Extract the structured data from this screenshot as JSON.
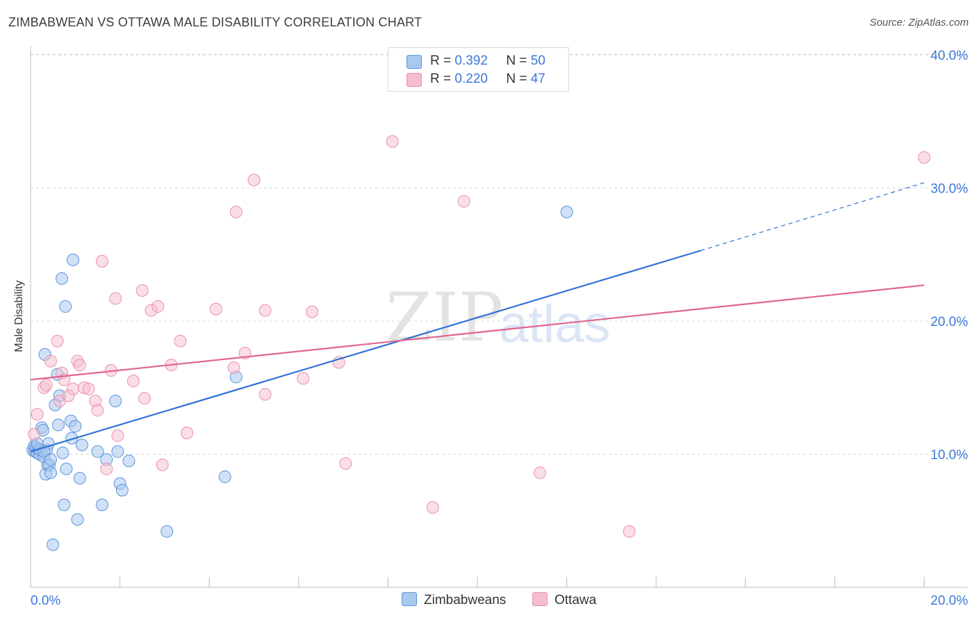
{
  "header": {
    "title": "ZIMBABWEAN VS OTTAWA MALE DISABILITY CORRELATION CHART",
    "source": "Source: ZipAtlas.com"
  },
  "watermark": {
    "zip": "ZIP",
    "atlas": "atlas"
  },
  "legend": {
    "series": [
      {
        "r_label": "R =",
        "r_value": "0.392",
        "n_label": "N =",
        "n_value": "50"
      },
      {
        "r_label": "R =",
        "r_value": "0.220",
        "n_label": "N =",
        "n_value": "47"
      }
    ]
  },
  "bottom_legend": {
    "series_a": "Zimbabweans",
    "series_b": "Ottawa"
  },
  "colors": {
    "blue_fill": "#a9c8f0",
    "blue_stroke": "#5b93d9",
    "blue_line": "#2e72d2",
    "pink_fill": "#f6bdd0",
    "pink_stroke": "#ea8fae",
    "pink_line": "#e0648f",
    "tick_label": "#3b78d8",
    "grid": "#d8d8d8"
  },
  "chart_data": {
    "type": "scatter",
    "title": "ZIMBABWEAN VS OTTAWA MALE DISABILITY CORRELATION CHART",
    "xlabel": "",
    "ylabel": "Male Disability",
    "xlim": [
      0,
      20
    ],
    "ylim": [
      0,
      40
    ],
    "x_tick_labels": [
      "0.0%",
      "20.0%"
    ],
    "y_ticks": [
      10,
      20,
      30,
      40
    ],
    "y_tick_labels": [
      "10.0%",
      "20.0%",
      "30.0%",
      "40.0%"
    ],
    "series": [
      {
        "name": "Zimbabweans",
        "r": 0.392,
        "n": 50,
        "trend": {
          "x0": 0,
          "y0": 10.2,
          "x1": 15,
          "y1": 25.3,
          "dashed_to_x": 20,
          "dashed_to_y": 30.4
        },
        "points": [
          [
            0.05,
            10.3
          ],
          [
            0.08,
            10.6
          ],
          [
            0.1,
            10.2
          ],
          [
            0.12,
            10.5
          ],
          [
            0.15,
            10.1
          ],
          [
            0.18,
            10.4
          ],
          [
            0.2,
            10.0
          ],
          [
            0.22,
            10.3
          ],
          [
            0.25,
            12.0
          ],
          [
            0.28,
            11.8
          ],
          [
            0.3,
            9.8
          ],
          [
            0.32,
            17.5
          ],
          [
            0.34,
            8.5
          ],
          [
            0.36,
            10.3
          ],
          [
            0.38,
            9.2
          ],
          [
            0.4,
            10.8
          ],
          [
            0.42,
            9.2
          ],
          [
            0.45,
            8.6
          ],
          [
            0.5,
            3.2
          ],
          [
            0.55,
            13.7
          ],
          [
            0.6,
            16.0
          ],
          [
            0.62,
            12.2
          ],
          [
            0.65,
            14.4
          ],
          [
            0.7,
            23.2
          ],
          [
            0.72,
            10.1
          ],
          [
            0.75,
            6.2
          ],
          [
            0.78,
            21.1
          ],
          [
            0.8,
            8.9
          ],
          [
            0.9,
            12.5
          ],
          [
            0.92,
            11.2
          ],
          [
            0.95,
            24.6
          ],
          [
            1.0,
            12.1
          ],
          [
            1.05,
            5.1
          ],
          [
            1.1,
            8.2
          ],
          [
            1.15,
            10.7
          ],
          [
            1.5,
            10.2
          ],
          [
            1.6,
            6.2
          ],
          [
            1.7,
            9.6
          ],
          [
            1.9,
            14.0
          ],
          [
            1.95,
            10.2
          ],
          [
            2.0,
            7.8
          ],
          [
            2.05,
            7.3
          ],
          [
            2.2,
            9.5
          ],
          [
            3.05,
            4.2
          ],
          [
            4.35,
            8.3
          ],
          [
            4.6,
            15.8
          ],
          [
            12.0,
            28.2
          ],
          [
            0.15,
            10.8
          ],
          [
            0.3,
            10.2
          ],
          [
            0.45,
            9.6
          ]
        ]
      },
      {
        "name": "Ottawa",
        "r": 0.22,
        "n": 47,
        "trend": {
          "x0": 0,
          "y0": 15.6,
          "x1": 20,
          "y1": 22.7
        },
        "points": [
          [
            0.08,
            11.5
          ],
          [
            0.15,
            13.0
          ],
          [
            0.3,
            15.0
          ],
          [
            0.35,
            15.2
          ],
          [
            0.45,
            17.0
          ],
          [
            0.6,
            18.5
          ],
          [
            0.65,
            14.0
          ],
          [
            0.7,
            16.1
          ],
          [
            0.75,
            15.6
          ],
          [
            0.85,
            14.4
          ],
          [
            0.95,
            14.9
          ],
          [
            1.05,
            17.0
          ],
          [
            1.1,
            16.7
          ],
          [
            1.2,
            15.0
          ],
          [
            1.3,
            14.9
          ],
          [
            1.45,
            14.0
          ],
          [
            1.5,
            13.3
          ],
          [
            1.6,
            24.5
          ],
          [
            1.7,
            8.9
          ],
          [
            1.8,
            16.3
          ],
          [
            1.9,
            21.7
          ],
          [
            1.95,
            11.4
          ],
          [
            2.3,
            15.5
          ],
          [
            2.5,
            22.3
          ],
          [
            2.55,
            14.2
          ],
          [
            2.7,
            20.8
          ],
          [
            2.85,
            21.1
          ],
          [
            2.95,
            9.2
          ],
          [
            3.15,
            16.7
          ],
          [
            3.35,
            18.5
          ],
          [
            3.5,
            11.6
          ],
          [
            4.15,
            20.9
          ],
          [
            4.55,
            16.5
          ],
          [
            4.6,
            28.2
          ],
          [
            4.8,
            17.6
          ],
          [
            5.0,
            30.6
          ],
          [
            5.25,
            20.8
          ],
          [
            5.25,
            14.5
          ],
          [
            6.1,
            15.7
          ],
          [
            6.3,
            20.7
          ],
          [
            6.9,
            16.9
          ],
          [
            7.05,
            9.3
          ],
          [
            8.1,
            33.5
          ],
          [
            9.0,
            6.0
          ],
          [
            9.7,
            29.0
          ],
          [
            11.4,
            8.6
          ],
          [
            13.4,
            4.2
          ]
        ],
        "extra_points": [
          [
            20.0,
            32.3
          ]
        ]
      }
    ]
  }
}
